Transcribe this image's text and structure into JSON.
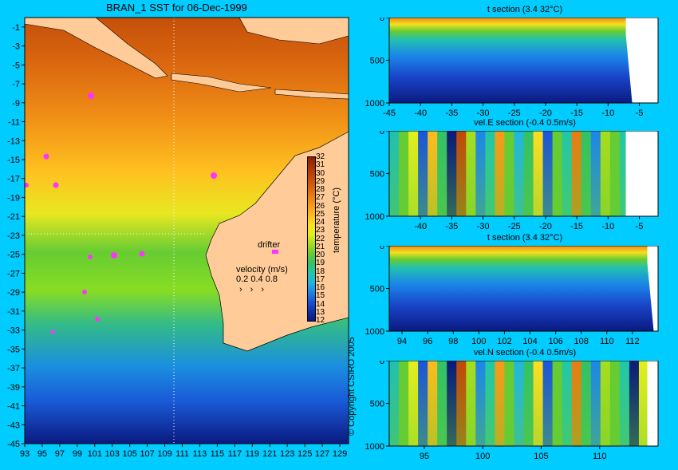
{
  "main_title": "BRAN_1 SST for 06-Dec-1999",
  "copyright": "© Copyright CSIRO 2005",
  "colors": {
    "background": "#00ccff",
    "land": "#ffcc99",
    "drifter": "#ff33ff",
    "sst_scale": [
      "#0a1a7a",
      "#1030b0",
      "#1a55d8",
      "#1e86e8",
      "#1fb7e0",
      "#22c7a8",
      "#33c266",
      "#66cc33",
      "#a6dd1f",
      "#e4ee1e",
      "#ffdd22",
      "#ffbb1c",
      "#f79a18",
      "#e87d12",
      "#d65f0c",
      "#c24808",
      "#a83306",
      "#8a2004"
    ]
  },
  "map": {
    "lon_ticks": [
      "93",
      "95",
      "97",
      "99",
      "101",
      "103",
      "105",
      "107",
      "109",
      "111",
      "113",
      "115",
      "117",
      "119",
      "121",
      "123",
      "125",
      "127",
      "129"
    ],
    "lat_ticks": [
      "-1",
      "-3",
      "-5",
      "-7",
      "-9",
      "-11",
      "-13",
      "-15",
      "-17",
      "-19",
      "-21",
      "-23",
      "-25",
      "-27",
      "-29",
      "-31",
      "-33",
      "-35",
      "-37",
      "-39",
      "-41",
      "-43",
      "-45"
    ],
    "legend_drifter": "drifter",
    "legend_velocity_title": "velocity (m/s)",
    "legend_velocity_values": "0.2 0.4 0.8",
    "colorbar_label": "temperature (°C)",
    "colorbar_ticks": [
      "32",
      "31",
      "30",
      "29",
      "28",
      "27",
      "26",
      "25",
      "24",
      "23",
      "22",
      "21",
      "20",
      "19",
      "18",
      "17",
      "16",
      "15",
      "14",
      "13",
      "12"
    ]
  },
  "chart_data": [
    {
      "type": "heatmap",
      "title": "BRAN_1 SST for 06-Dec-1999",
      "xlim": [
        93,
        130
      ],
      "ylim": [
        -45,
        0
      ],
      "colorbar": {
        "label": "temperature (°C)",
        "range": [
          12,
          32
        ]
      }
    },
    {
      "type": "heatmap",
      "title": "t section (3.4      32°C)",
      "xticks": [
        "-45",
        "-40",
        "-35",
        "-30",
        "-25",
        "-20",
        "-15",
        "-10",
        "-5"
      ],
      "yticks": [
        "0",
        "500",
        "1000"
      ],
      "xlim": [
        -45,
        -2
      ],
      "ylim": [
        1000,
        0
      ]
    },
    {
      "type": "heatmap",
      "title": "vel.E section (-0.4      0.5m/s)",
      "xticks": [
        "-40",
        "-35",
        "-30",
        "-25",
        "-20",
        "-15",
        "-10",
        "-5"
      ],
      "yticks": [
        "0",
        "500",
        "1000"
      ],
      "xlim": [
        -45,
        -2
      ],
      "ylim": [
        1000,
        0
      ]
    },
    {
      "type": "heatmap",
      "title": "t section (3.4      32°C)",
      "xticks": [
        "94",
        "96",
        "98",
        "100",
        "102",
        "104",
        "106",
        "108",
        "110",
        "112"
      ],
      "yticks": [
        "0",
        "500",
        "1000"
      ],
      "xlim": [
        93,
        114
      ],
      "ylim": [
        1000,
        0
      ]
    },
    {
      "type": "heatmap",
      "title": "vel.N section (-0.4      0.5m/s)",
      "xticks": [
        "95",
        "100",
        "105",
        "110"
      ],
      "yticks": [
        "0",
        "500",
        "1000"
      ],
      "xlim": [
        92,
        115
      ],
      "ylim": [
        1000,
        0
      ]
    }
  ]
}
